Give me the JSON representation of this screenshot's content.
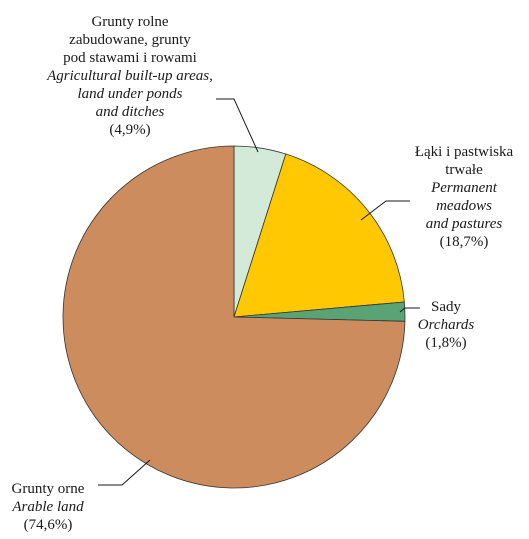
{
  "chart_data": {
    "type": "pie",
    "start_angle_deg": 0,
    "direction": "clockwise",
    "slices": [
      {
        "label_pl": [
          "Grunty rolne",
          "zabudowane, grunty",
          "pod stawami i rowami"
        ],
        "label_en": [
          "Agricultural built-up areas,",
          "land under ponds",
          "and ditches"
        ],
        "percent_label": "(4,9%)",
        "value": 4.9,
        "color": "#d4ead9"
      },
      {
        "label_pl": [
          "Łąki i pastwiska",
          "trwałe"
        ],
        "label_en": [
          "Permanent",
          "meadows",
          "and pastures"
        ],
        "percent_label": "(18,7%)",
        "value": 18.7,
        "color": "#ffc800"
      },
      {
        "label_pl": [
          "Sady"
        ],
        "label_en": [
          "Orchards"
        ],
        "percent_label": "(1,8%)",
        "value": 1.8,
        "color": "#5aa375"
      },
      {
        "label_pl": [
          "Grunty orne"
        ],
        "label_en": [
          "Arable land"
        ],
        "percent_label": "(74,6%)",
        "value": 74.6,
        "color": "#cd8c5e"
      }
    ]
  }
}
